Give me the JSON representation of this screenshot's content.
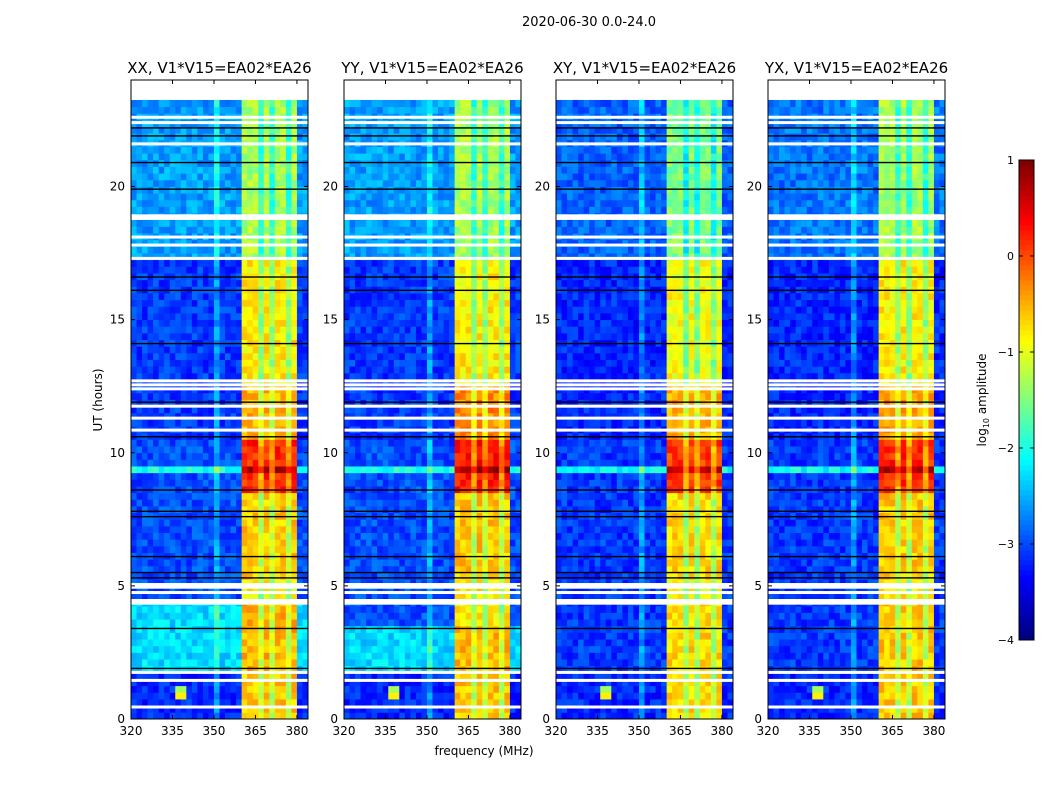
{
  "chart_data": {
    "type": "heatmap",
    "suptitle": "2020-06-30 0.0-24.0",
    "xlabel": "frequency (MHz)",
    "ylabel": "UT (hours)",
    "xlim": [
      320,
      384
    ],
    "ylim": [
      0,
      24
    ],
    "data_time_range": [
      0,
      23.2
    ],
    "xticks": [
      320,
      335,
      350,
      365,
      380
    ],
    "yticks": [
      0,
      5,
      10,
      15,
      20
    ],
    "colorbar": {
      "label_main": "log",
      "label_sub": "10",
      "label_rest": " amplitude",
      "range": [
        -4,
        1
      ],
      "ticks": [
        -4,
        -3,
        -2,
        -1,
        0,
        1
      ],
      "tick_labels": [
        "−4",
        "−3",
        "−2",
        "−1",
        "0",
        "1"
      ],
      "colormap": "jet"
    },
    "bright_band_mhz": [
      361,
      380
    ],
    "band_gaps_mhz": [
      366.5,
      371.5,
      376.5
    ],
    "rfi_line_mhz": 351,
    "spot": {
      "freq": 338,
      "time": 0.9,
      "amplitude": -0.3
    },
    "strong_strip_hours": [
      9.2,
      9.6
    ],
    "flagged_white_hours": [
      0.45,
      1.45,
      1.75,
      4.35,
      4.45,
      4.75,
      4.95,
      5.05,
      10.85,
      11.3,
      11.75,
      12.4,
      12.55,
      12.7,
      17.3,
      17.8,
      18.1,
      18.8,
      18.9,
      21.6,
      22.4,
      22.6
    ],
    "flagged_black_hours": [
      1.9,
      3.4,
      5.3,
      5.5,
      6.1,
      7.6,
      7.8,
      8.6,
      10.6,
      11.9,
      14.1,
      16.1,
      16.6,
      19.9,
      20.9,
      21.9,
      22.2
    ],
    "panels": [
      {
        "title": "XX, V1*V15=EA02*EA26",
        "segments": [
          [
            0,
            1.7,
            -3.2,
            -0.6
          ],
          [
            1.7,
            4.3,
            -2.3,
            -0.5
          ],
          [
            4.3,
            5.2,
            -3.0,
            -0.8
          ],
          [
            5.2,
            8.5,
            -3.0,
            -0.6
          ],
          [
            8.5,
            10.5,
            -3.0,
            0.2
          ],
          [
            10.5,
            12.5,
            -3.1,
            -0.5
          ],
          [
            12.5,
            17.2,
            -3.1,
            -0.8
          ],
          [
            17.2,
            23.2,
            -2.6,
            -1.3
          ]
        ]
      },
      {
        "title": "YY, V1*V15=EA02*EA26",
        "segments": [
          [
            0,
            1.7,
            -3.2,
            -0.6
          ],
          [
            1.7,
            3.5,
            -2.3,
            -0.5
          ],
          [
            3.5,
            5.2,
            -3.0,
            -0.8
          ],
          [
            5.2,
            8.5,
            -3.0,
            -0.6
          ],
          [
            8.5,
            10.5,
            -3.0,
            0.3
          ],
          [
            10.5,
            12.5,
            -3.1,
            -0.3
          ],
          [
            12.5,
            17.2,
            -3.1,
            -0.8
          ],
          [
            17.2,
            23.2,
            -2.6,
            -1.3
          ]
        ]
      },
      {
        "title": "XY, V1*V15=EA02*EA26",
        "segments": [
          [
            0,
            1.7,
            -3.2,
            -0.7
          ],
          [
            1.7,
            4.3,
            -3.1,
            -0.7
          ],
          [
            4.3,
            5.2,
            -3.1,
            -0.9
          ],
          [
            5.2,
            8.5,
            -3.1,
            -0.7
          ],
          [
            8.5,
            10.5,
            -3.1,
            0.1
          ],
          [
            10.5,
            12.5,
            -3.2,
            -0.5
          ],
          [
            12.5,
            17.2,
            -3.2,
            -0.9
          ],
          [
            17.2,
            23.2,
            -2.9,
            -1.5
          ]
        ]
      },
      {
        "title": "YX, V1*V15=EA02*EA26",
        "segments": [
          [
            0,
            1.7,
            -3.2,
            -0.6
          ],
          [
            1.7,
            4.3,
            -3.1,
            -0.6
          ],
          [
            4.3,
            5.2,
            -3.1,
            -0.8
          ],
          [
            5.2,
            8.5,
            -3.1,
            -0.6
          ],
          [
            8.5,
            10.5,
            -3.1,
            0.2
          ],
          [
            10.5,
            12.5,
            -3.2,
            -0.4
          ],
          [
            12.5,
            17.2,
            -3.2,
            -0.8
          ],
          [
            17.2,
            23.2,
            -2.8,
            -1.3
          ]
        ]
      }
    ]
  }
}
